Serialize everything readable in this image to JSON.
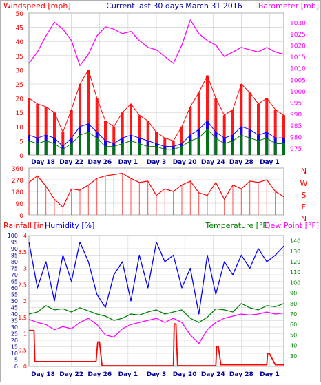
{
  "header": {
    "left_label": "Windspeed [mph]",
    "center_label": "Current last 30 days March 31 2016",
    "right_label": "Barometer [mb]"
  },
  "colors": {
    "red": "#ff0000",
    "blue": "#0000ff",
    "navy": "#000099",
    "green": "#008000",
    "magenta": "#ff00ff",
    "grid": "#c8c8c8"
  },
  "compass": [
    "N",
    "W",
    "S",
    "E",
    "N"
  ],
  "chart_data": [
    {
      "type": "line",
      "panel": "wind-barometer",
      "ylabel_left": "Windspeed [mph]",
      "ylim_left": [
        0,
        50
      ],
      "yticks_left": [
        0,
        5,
        10,
        15,
        20,
        25,
        30,
        35,
        40,
        45,
        50
      ],
      "ylabel_right": "Barometer [mb]",
      "ylim_right": [
        972,
        1034
      ],
      "yticks_right": [
        975,
        980,
        985,
        990,
        995,
        1000,
        1005,
        1010,
        1015,
        1020,
        1025,
        1030
      ],
      "xticks": [
        "Day 18",
        "Day 22",
        "Day 26",
        "Day 1",
        "Day 3",
        "Day 20",
        "Day 24",
        "Day 28",
        "Day 1"
      ],
      "series": [
        {
          "color": "#ff0000",
          "axis": "left",
          "x": [
            0,
            1,
            2,
            3,
            4,
            5,
            6,
            7,
            8,
            9,
            10,
            11,
            12,
            13,
            14,
            15,
            16,
            17,
            18,
            19,
            20,
            21,
            22,
            23,
            24,
            25,
            26,
            27,
            28,
            29,
            30
          ],
          "values": [
            20,
            18,
            17,
            15,
            8,
            16,
            25,
            30,
            20,
            12,
            10,
            15,
            18,
            14,
            12,
            8,
            6,
            5,
            10,
            17,
            22,
            28,
            20,
            14,
            16,
            25,
            22,
            18,
            20,
            16,
            14
          ]
        },
        {
          "color": "#0000ff",
          "axis": "left",
          "x": [
            0,
            1,
            2,
            3,
            4,
            5,
            6,
            7,
            8,
            9,
            10,
            11,
            12,
            13,
            14,
            15,
            16,
            17,
            18,
            19,
            20,
            21,
            22,
            23,
            24,
            25,
            26,
            27,
            28,
            29,
            30
          ],
          "values": [
            7,
            6,
            7,
            6,
            3,
            6,
            10,
            11,
            8,
            5,
            4,
            6,
            7,
            6,
            5,
            4,
            3,
            3,
            4,
            7,
            9,
            12,
            8,
            6,
            7,
            10,
            9,
            7,
            8,
            6,
            6
          ]
        },
        {
          "color": "#008000",
          "axis": "left",
          "x": [
            0,
            1,
            2,
            3,
            4,
            5,
            6,
            7,
            8,
            9,
            10,
            11,
            12,
            13,
            14,
            15,
            16,
            17,
            18,
            19,
            20,
            21,
            22,
            23,
            24,
            25,
            26,
            27,
            28,
            29,
            30
          ],
          "values": [
            5,
            4,
            5,
            4,
            2,
            4,
            7,
            8,
            6,
            3,
            3,
            4,
            5,
            4,
            3,
            3,
            2,
            2,
            3,
            5,
            6,
            9,
            6,
            4,
            5,
            7,
            6,
            5,
            6,
            4,
            4
          ]
        },
        {
          "color": "#ff00ff",
          "axis": "right",
          "x": [
            0,
            1,
            2,
            3,
            4,
            5,
            6,
            7,
            8,
            9,
            10,
            11,
            12,
            13,
            14,
            15,
            16,
            17,
            18,
            19,
            20,
            21,
            22,
            23,
            24,
            25,
            26,
            27,
            28,
            29,
            30
          ],
          "values": [
            1012,
            1017,
            1024,
            1030,
            1027,
            1022,
            1011,
            1016,
            1024,
            1028,
            1027,
            1025,
            1026,
            1022,
            1019,
            1018,
            1015,
            1012,
            1020,
            1031,
            1025,
            1022,
            1020,
            1015,
            1017,
            1019,
            1018,
            1017,
            1019,
            1017,
            1016
          ]
        }
      ]
    },
    {
      "type": "line",
      "panel": "wind-direction",
      "ylim": [
        0,
        360
      ],
      "yticks": [
        0,
        90,
        180,
        270,
        360
      ],
      "series": [
        {
          "color": "#ff0000",
          "x": [
            0,
            1,
            2,
            3,
            4,
            5,
            6,
            7,
            8,
            9,
            10,
            11,
            12,
            13,
            14,
            15,
            16,
            17,
            18,
            19,
            20,
            21,
            22,
            23,
            24,
            25,
            26,
            27,
            28,
            29,
            30
          ],
          "values": [
            250,
            300,
            220,
            120,
            60,
            200,
            190,
            230,
            280,
            300,
            310,
            320,
            280,
            250,
            260,
            150,
            200,
            180,
            230,
            260,
            170,
            150,
            250,
            120,
            230,
            200,
            260,
            250,
            270,
            180,
            140
          ]
        }
      ]
    },
    {
      "type": "line",
      "panel": "rain-humidity-temperature",
      "ylabel_left_rain": "Rainfall [in]",
      "ylim_rain": [
        0,
        4
      ],
      "yticks_rain": [
        0,
        0.5,
        1,
        1.5,
        2,
        2.5,
        3,
        3.5,
        4
      ],
      "ylabel_left_humidity": "Humidity [%]",
      "ylim_humidity": [
        0,
        100
      ],
      "yticks_humidity": [
        0,
        5,
        10,
        15,
        20,
        25,
        30,
        35,
        40,
        45,
        50,
        55,
        60,
        65,
        70,
        75,
        80,
        85,
        90,
        95,
        100
      ],
      "ylabel_right_temperature": "Temperature [°F]",
      "ylabel_right_dewpoint": "Dew Point [°F]",
      "ylim_temperature": [
        20,
        145
      ],
      "yticks_temperature": [
        30,
        40,
        50,
        60,
        70,
        80,
        90,
        100,
        110,
        120,
        130,
        140
      ],
      "series": [
        {
          "color": "#ff0000",
          "axis": "rain",
          "x": [
            0,
            0.6,
            0.7,
            1,
            2,
            3,
            4,
            5,
            6,
            7,
            7.9,
            8.1,
            8.3,
            8.6,
            9,
            10,
            11,
            12,
            13,
            14,
            15,
            16,
            17,
            17.1,
            17.3,
            17.5,
            18,
            20,
            21,
            22,
            22.1,
            22.3,
            22.6,
            23,
            24,
            25,
            26,
            27,
            28,
            28.1,
            28.3,
            29,
            30
          ],
          "values": [
            1.1,
            1.1,
            0.15,
            0.15,
            0.15,
            0.15,
            0.15,
            0.15,
            0.15,
            0.15,
            0.15,
            0.75,
            0.75,
            0.02,
            0.02,
            0.02,
            0.02,
            0.02,
            0.02,
            0.02,
            0.02,
            0.02,
            0.02,
            1.3,
            1.3,
            0.02,
            0.02,
            0.02,
            0.02,
            0.02,
            0.6,
            0.6,
            0.05,
            0.05,
            0.05,
            0.05,
            0.05,
            0.05,
            0.05,
            0.4,
            0.4,
            0.05,
            0.05
          ]
        },
        {
          "color": "#0000ff",
          "axis": "humidity",
          "x": [
            0,
            1,
            2,
            3,
            4,
            5,
            6,
            7,
            8,
            9,
            10,
            11,
            12,
            13,
            14,
            15,
            16,
            17,
            18,
            19,
            20,
            21,
            22,
            23,
            24,
            25,
            26,
            27,
            28,
            29,
            30
          ],
          "values": [
            95,
            60,
            80,
            50,
            85,
            65,
            95,
            80,
            55,
            45,
            70,
            80,
            50,
            85,
            60,
            95,
            80,
            85,
            60,
            75,
            40,
            85,
            55,
            80,
            70,
            85,
            75,
            90,
            80,
            85,
            92
          ]
        },
        {
          "color": "#008000",
          "axis": "temperature",
          "x": [
            0,
            1,
            2,
            3,
            4,
            5,
            6,
            7,
            8,
            9,
            10,
            11,
            12,
            13,
            14,
            15,
            16,
            17,
            18,
            19,
            20,
            21,
            22,
            23,
            24,
            25,
            26,
            27,
            28,
            29,
            30
          ],
          "values": [
            70,
            72,
            78,
            74,
            75,
            72,
            76,
            73,
            70,
            68,
            64,
            66,
            70,
            69,
            72,
            74,
            70,
            72,
            74,
            66,
            62,
            67,
            75,
            74,
            72,
            80,
            76,
            74,
            78,
            77,
            80
          ]
        },
        {
          "color": "#ff00ff",
          "axis": "temperature",
          "x": [
            0,
            1,
            2,
            3,
            4,
            5,
            6,
            7,
            8,
            9,
            10,
            11,
            12,
            13,
            14,
            15,
            16,
            17,
            18,
            19,
            20,
            21,
            22,
            23,
            24,
            25,
            26,
            27,
            28,
            29,
            30
          ],
          "values": [
            65,
            62,
            60,
            55,
            58,
            56,
            62,
            66,
            60,
            50,
            48,
            56,
            60,
            62,
            64,
            66,
            62,
            66,
            62,
            50,
            42,
            55,
            62,
            66,
            68,
            70,
            69,
            70,
            72,
            70,
            71
          ]
        }
      ]
    }
  ]
}
